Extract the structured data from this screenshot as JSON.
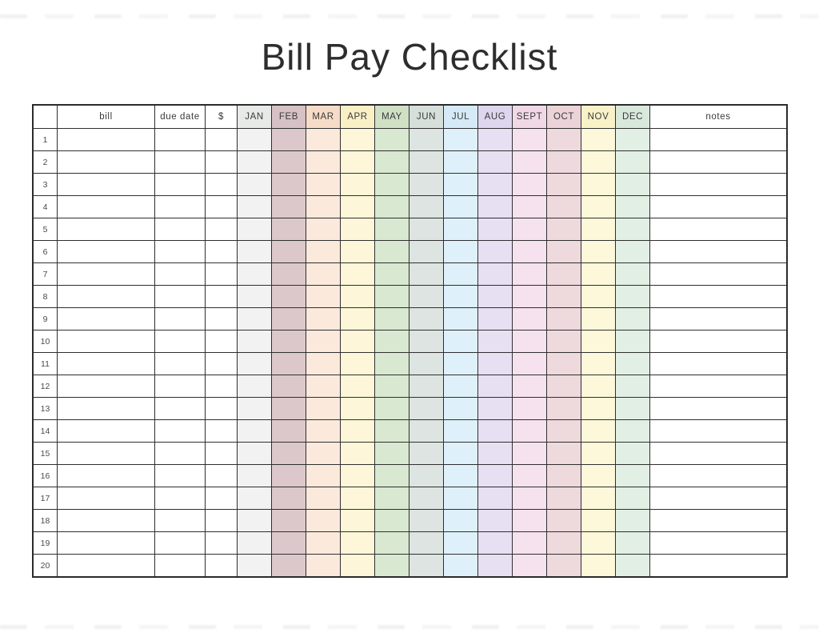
{
  "title": "Bill Pay Checklist",
  "table": {
    "columns": [
      {
        "key": "num",
        "label": "",
        "type": "plain",
        "header_color": "#ffffff",
        "body_color": "#ffffff"
      },
      {
        "key": "bill",
        "label": "bill",
        "type": "plain",
        "header_color": "#ffffff",
        "body_color": "#ffffff"
      },
      {
        "key": "due",
        "label": "due date",
        "type": "plain",
        "header_color": "#ffffff",
        "body_color": "#ffffff"
      },
      {
        "key": "amount",
        "label": "$",
        "type": "plain",
        "header_color": "#ffffff",
        "body_color": "#ffffff"
      },
      {
        "key": "month",
        "label": "JAN",
        "type": "month",
        "header_color": "#e8eae8",
        "body_color": "#f1f2f1"
      },
      {
        "key": "month",
        "label": "FEB",
        "type": "month",
        "header_color": "#d6c1c5",
        "body_color": "#dcc8cb"
      },
      {
        "key": "month",
        "label": "MAR",
        "type": "month",
        "header_color": "#f6dcc8",
        "body_color": "#fbe9dc"
      },
      {
        "key": "month",
        "label": "APR",
        "type": "month",
        "header_color": "#f9f0c6",
        "body_color": "#fdf6d8"
      },
      {
        "key": "month",
        "label": "MAY",
        "type": "month",
        "header_color": "#cfe0c5",
        "body_color": "#d9e8d1"
      },
      {
        "key": "month",
        "label": "JUN",
        "type": "month",
        "header_color": "#d6dfd9",
        "body_color": "#dee4e1"
      },
      {
        "key": "month",
        "label": "JUL",
        "type": "month",
        "header_color": "#d5eaf6",
        "body_color": "#def0f9"
      },
      {
        "key": "month",
        "label": "AUG",
        "type": "month",
        "header_color": "#ded5ee",
        "body_color": "#e7e0f3"
      },
      {
        "key": "month",
        "label": "SEPT",
        "type": "month",
        "header_color": "#f1d8e7",
        "body_color": "#f5e2ee"
      },
      {
        "key": "month",
        "label": "OCT",
        "type": "month",
        "header_color": "#ebd3d8",
        "body_color": "#eed9dd"
      },
      {
        "key": "month",
        "label": "NOV",
        "type": "month",
        "header_color": "#f9f2c9",
        "body_color": "#fdf8da"
      },
      {
        "key": "month",
        "label": "DEC",
        "type": "month",
        "header_color": "#d8e9dc",
        "body_color": "#e2efe4"
      },
      {
        "key": "notes",
        "label": "notes",
        "type": "plain",
        "header_color": "#ffffff",
        "body_color": "#ffffff"
      }
    ],
    "row_numbers": [
      "1",
      "2",
      "3",
      "4",
      "5",
      "6",
      "7",
      "8",
      "9",
      "10",
      "11",
      "12",
      "13",
      "14",
      "15",
      "16",
      "17",
      "18",
      "19",
      "20"
    ],
    "cell_value": ""
  },
  "colors": {
    "grid_line": "#2f2f2f",
    "title_text": "#2d2d2d",
    "header_text": "#3a3a3a",
    "row_number_text": "#4a4a4a",
    "page_background": "#ffffff"
  }
}
